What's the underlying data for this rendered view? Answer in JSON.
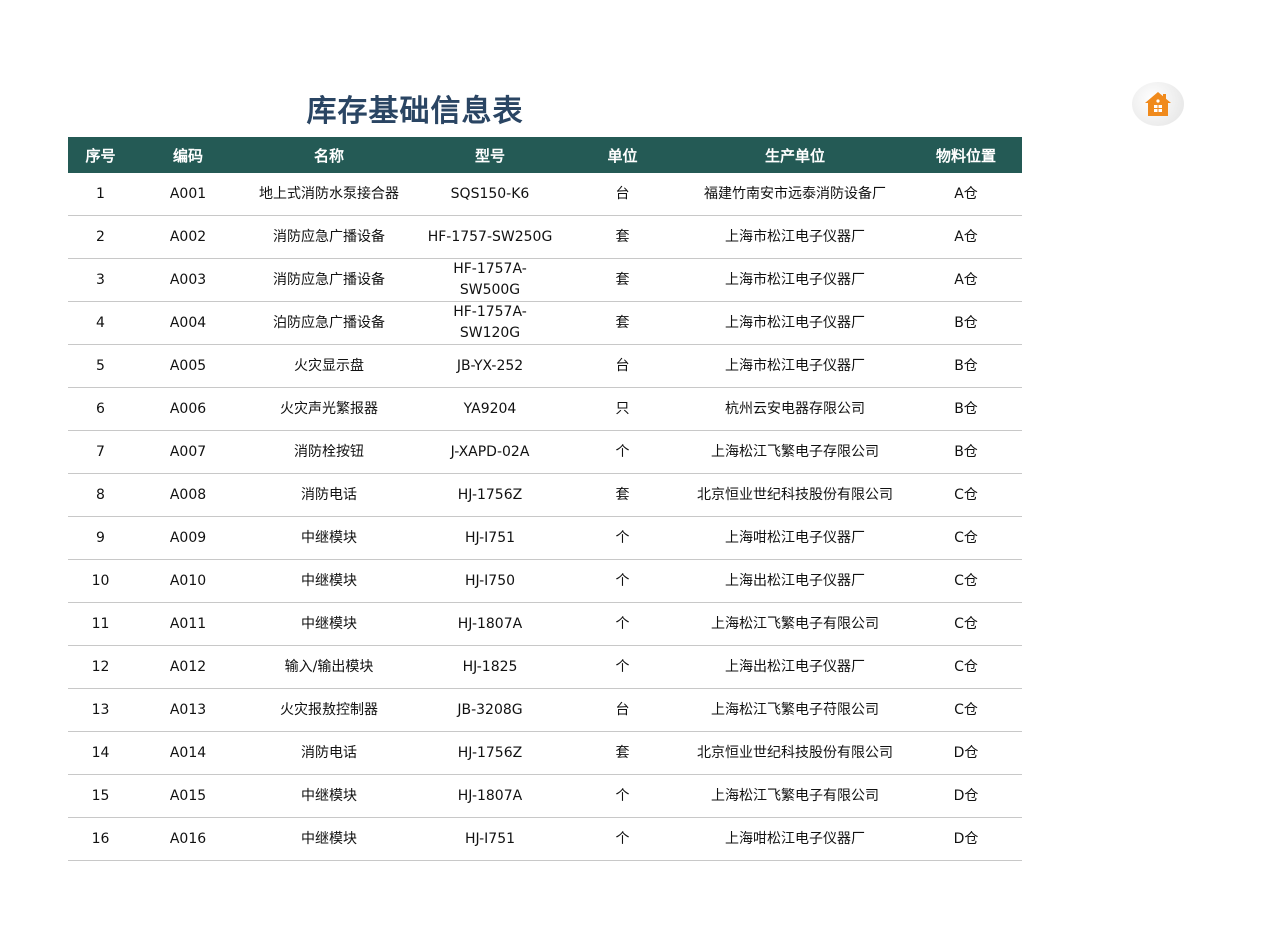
{
  "title": "库存基础信息表",
  "home_icon": "home-icon",
  "accent_color": "#245a55",
  "icon_color": "#f08a1c",
  "columns": [
    "序号",
    "编码",
    "名称",
    "型号",
    "单位",
    "生产单位",
    "物料位置"
  ],
  "rows": [
    [
      "1",
      "A001",
      "地上式消防水泵接合器",
      "SQS150-K6",
      "台",
      "福建竹南安市远泰消防设备厂",
      "A仓"
    ],
    [
      "2",
      "A002",
      "消防应急广播设备",
      "HF-1757-SW250G",
      "套",
      "上海市松江电子仪器厂",
      "A仓"
    ],
    [
      "3",
      "A003",
      "消防应急广播设备",
      "HF-1757A-\nSW500G",
      "套",
      "上海市松江电子仪器厂",
      "A仓"
    ],
    [
      "4",
      "A004",
      "泊防应急广播设备",
      "HF-1757A-\nSW120G",
      "套",
      "上海市松江电子仪器厂",
      "B仓"
    ],
    [
      "5",
      "A005",
      "火灾显示盘",
      "JB-YX-252",
      "台",
      "上海市松江电子仪器厂",
      "B仓"
    ],
    [
      "6",
      "A006",
      "火灾声光繁报器",
      "YA9204",
      "只",
      "杭州云安电器存限公司",
      "B仓"
    ],
    [
      "7",
      "A007",
      "消防栓按钮",
      "J-XAPD-02A",
      "个",
      "上海松江飞繁电子存限公司",
      "B仓"
    ],
    [
      "8",
      "A008",
      "消防电话",
      "HJ-1756Z",
      "套",
      "北京恒业世纪科技股份有限公司",
      "C仓"
    ],
    [
      "9",
      "A009",
      "中继模块",
      "HJ-I751",
      "个",
      "上海咁松江电子仪器厂",
      "C仓"
    ],
    [
      "10",
      "A010",
      "中继模块",
      "HJ-I750",
      "个",
      "上海出松江电子仪器厂",
      "C仓"
    ],
    [
      "11",
      "A011",
      "中继模块",
      "HJ-1807A",
      "个",
      "上海松江飞繁电子有限公司",
      "C仓"
    ],
    [
      "12",
      "A012",
      "输入/输出模块",
      "HJ-1825",
      "个",
      "上海出松江电子仪器厂",
      "C仓"
    ],
    [
      "13",
      "A013",
      "火灾报敖控制器",
      "JB-3208G",
      "台",
      "上海松江飞繁电子苻限公司",
      "C仓"
    ],
    [
      "14",
      "A014",
      "消防电话",
      "HJ-1756Z",
      "套",
      "北京恒业世纪科技股份有限公司",
      "D仓"
    ],
    [
      "15",
      "A015",
      "中继模块",
      "HJ-1807A",
      "个",
      "上海松江飞繁电子有限公司",
      "D仓"
    ],
    [
      "16",
      "A016",
      "中继模块",
      "HJ-I751",
      "个",
      "上海咁松江电子仪器厂",
      "D仓"
    ]
  ]
}
